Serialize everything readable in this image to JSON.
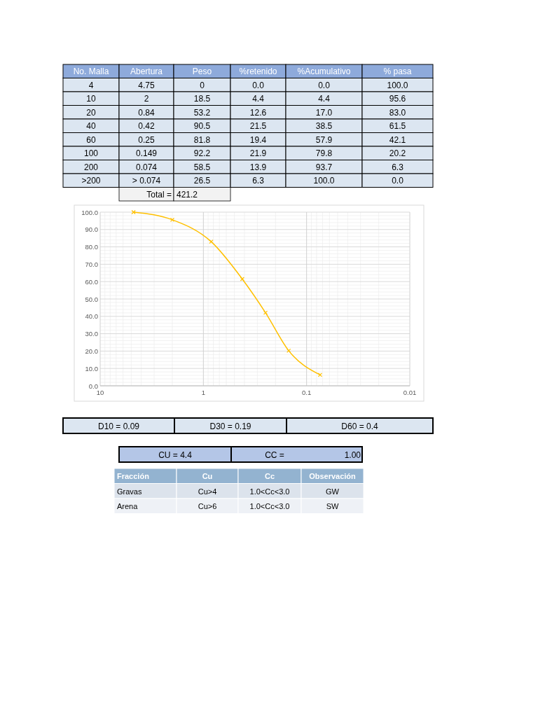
{
  "chart_data": {
    "type": "line",
    "x": [
      4.75,
      2,
      0.84,
      0.42,
      0.25,
      0.149,
      0.074
    ],
    "series": [
      {
        "color": "#ffc000",
        "values": [
          100,
          95.6,
          83,
          61.5,
          42.1,
          20.2,
          6.3
        ]
      }
    ],
    "xlim": [
      10,
      0.01
    ],
    "xticks": [
      10,
      1,
      0.1,
      0.01
    ],
    "log": "x",
    "ylim": [
      0,
      100
    ],
    "yticks": [
      {
        "value": 0,
        "label": "0.0"
      },
      {
        "value": 10,
        "label": "10.0"
      },
      {
        "value": 20,
        "label": "20.0"
      },
      {
        "value": 30,
        "label": "30.0"
      },
      {
        "value": 40,
        "label": "40.0"
      },
      {
        "value": 50,
        "label": "50.0"
      },
      {
        "value": 60,
        "label": "60.0"
      },
      {
        "value": 70,
        "label": "70.0"
      },
      {
        "value": 80,
        "label": "80.0"
      },
      {
        "value": 90,
        "label": "90.0"
      },
      {
        "value": 100,
        "label": "100.0"
      }
    ],
    "grid": true,
    "marker": "cross",
    "annotations": [
      "No. Malla",
      "Abertura",
      "Peso",
      "%retenido",
      "%Acumulativo",
      "% pasa",
      "4",
      "4.75",
      "0",
      "0.0",
      "0.0",
      "100.0",
      "10",
      "2",
      "18.5",
      "4.4",
      "4.4",
      "95.6",
      "20",
      "0.84",
      "53.2",
      "12.6",
      "17.0",
      "83.0",
      "40",
      "0.42",
      "90.5",
      "21.5",
      "38.5",
      "61.5",
      "60",
      "0.25",
      "81.8",
      "19.4",
      "57.9",
      "42.1",
      "100",
      "0.149",
      "92.2",
      "21.9",
      "79.8",
      "20.2",
      "200",
      "0.074",
      "58.5",
      "13.9",
      "93.7",
      "6.3",
      ">200",
      "> 0.074",
      "26.5",
      "6.3",
      "100.0",
      "0.0",
      "Total =",
      "421.2",
      "D10 = 0.09",
      "D30 = 0.19",
      "D60 = 0.4",
      "CU = 4.4",
      "CC =",
      "1.00",
      "Fracción",
      "Cu",
      "Cc",
      "Observación",
      "Gravas",
      "Cu>4",
      "1.0<Cc<3.0",
      "GW",
      "Arena",
      "Cu>6",
      "1.0<Cc<3.0",
      "SW"
    ]
  }
}
